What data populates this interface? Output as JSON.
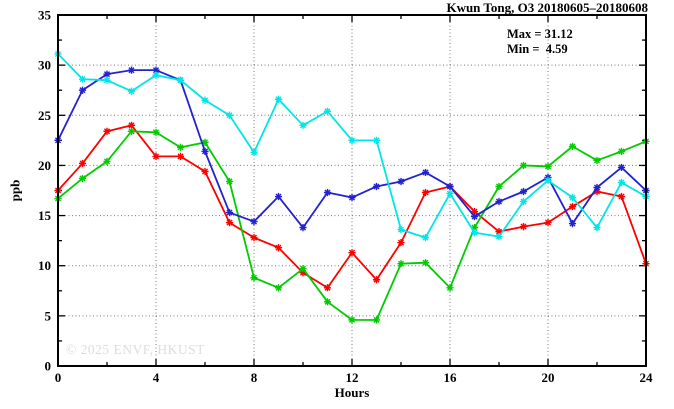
{
  "chart": {
    "title": "Kwun Tong, O3 20180605–20180608",
    "stats": {
      "max_label": "Max = 31.12",
      "min_label": "Min =  4.59"
    },
    "watermark": "© 2025 ENVF, HKUST",
    "xlabel": "Hours",
    "ylabel": "ppb"
  },
  "chart_data": {
    "type": "line",
    "title": "Kwun Tong, O3 20180605–20180608",
    "xlabel": "Hours",
    "ylabel": "ppb",
    "xlim": [
      0,
      24
    ],
    "ylim": [
      0,
      35
    ],
    "xticks": [
      0,
      4,
      8,
      12,
      16,
      20,
      24
    ],
    "xtick_minor_step": 2,
    "yticks": [
      0,
      5,
      10,
      15,
      20,
      25,
      30,
      35
    ],
    "ytick_minor_step": 2.5,
    "grid": true,
    "legend_position": "none",
    "marker": "star",
    "annotations": {
      "max": 31.12,
      "min": 4.59
    },
    "x": [
      0,
      1,
      2,
      3,
      4,
      5,
      6,
      7,
      8,
      9,
      10,
      11,
      12,
      13,
      14,
      15,
      16,
      17,
      18,
      19,
      20,
      21,
      22,
      23,
      24
    ],
    "series": [
      {
        "name": "red-day",
        "color": "#ff0000",
        "values": [
          17.5,
          20.2,
          23.4,
          24.0,
          20.9,
          20.9,
          19.4,
          14.3,
          12.8,
          11.8,
          9.3,
          7.8,
          11.3,
          8.6,
          12.3,
          17.3,
          17.9,
          15.4,
          13.4,
          13.9,
          14.3,
          15.9,
          17.4,
          16.9,
          10.2
        ]
      },
      {
        "name": "green-day",
        "color": "#00cc00",
        "values": [
          16.7,
          18.7,
          20.4,
          23.4,
          23.3,
          21.8,
          22.3,
          18.4,
          8.8,
          7.8,
          9.7,
          6.4,
          4.6,
          4.59,
          10.2,
          10.3,
          7.8,
          13.8,
          17.9,
          20.0,
          19.9,
          21.9,
          20.5,
          21.4,
          22.4
        ]
      },
      {
        "name": "blue-day",
        "color": "#2222d0",
        "values": [
          22.5,
          27.5,
          29.1,
          29.5,
          29.5,
          28.5,
          21.4,
          15.3,
          14.4,
          16.9,
          13.8,
          17.3,
          16.8,
          17.9,
          18.4,
          19.3,
          17.9,
          14.9,
          16.4,
          17.4,
          18.8,
          14.2,
          17.8,
          19.8,
          17.5
        ]
      },
      {
        "name": "cyan-day",
        "color": "#00e6e6",
        "values": [
          31.12,
          28.6,
          28.5,
          27.4,
          29.0,
          28.5,
          26.5,
          25.0,
          21.3,
          26.6,
          24.0,
          25.4,
          22.5,
          22.5,
          13.6,
          12.8,
          17.2,
          13.3,
          12.9,
          16.4,
          18.5,
          16.8,
          13.8,
          18.3,
          16.9
        ]
      }
    ]
  }
}
